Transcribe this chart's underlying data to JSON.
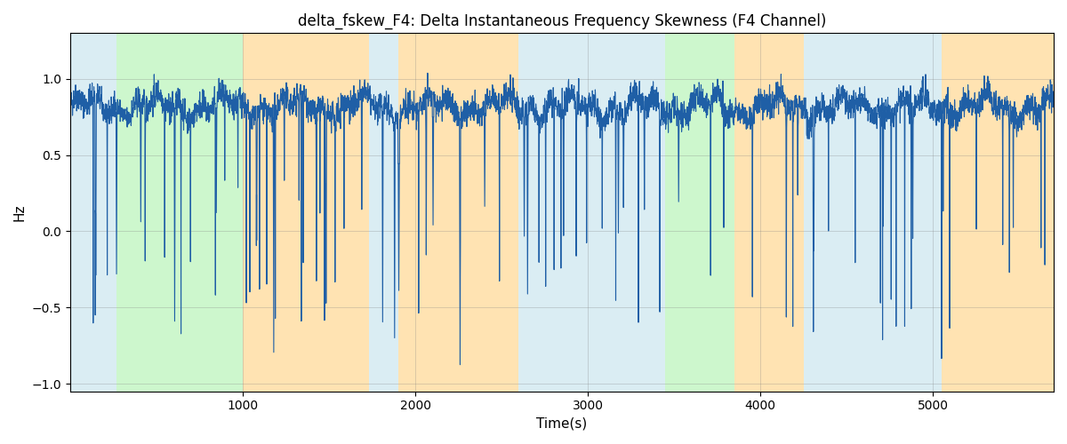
{
  "title": "delta_fskew_F4: Delta Instantaneous Frequency Skewness (F4 Channel)",
  "xlabel": "Time(s)",
  "ylabel": "Hz",
  "xlim": [
    0,
    5700
  ],
  "ylim": [
    -1.05,
    1.3
  ],
  "line_color": "#1f5fa6",
  "line_width": 0.8,
  "background_bands": [
    {
      "xmin": 0,
      "xmax": 270,
      "color": "#add8e6",
      "alpha": 0.45
    },
    {
      "xmin": 270,
      "xmax": 1000,
      "color": "#90ee90",
      "alpha": 0.45
    },
    {
      "xmin": 1000,
      "xmax": 1730,
      "color": "#ffa500",
      "alpha": 0.3
    },
    {
      "xmin": 1730,
      "xmax": 1900,
      "color": "#add8e6",
      "alpha": 0.45
    },
    {
      "xmin": 1900,
      "xmax": 2600,
      "color": "#ffa500",
      "alpha": 0.3
    },
    {
      "xmin": 2600,
      "xmax": 2720,
      "color": "#add8e6",
      "alpha": 0.45
    },
    {
      "xmin": 2720,
      "xmax": 3000,
      "color": "#add8e6",
      "alpha": 0.45
    },
    {
      "xmin": 3000,
      "xmax": 3450,
      "color": "#add8e6",
      "alpha": 0.45
    },
    {
      "xmin": 3450,
      "xmax": 3850,
      "color": "#90ee90",
      "alpha": 0.45
    },
    {
      "xmin": 3850,
      "xmax": 4250,
      "color": "#ffa500",
      "alpha": 0.3
    },
    {
      "xmin": 4250,
      "xmax": 4800,
      "color": "#add8e6",
      "alpha": 0.45
    },
    {
      "xmin": 4800,
      "xmax": 5050,
      "color": "#add8e6",
      "alpha": 0.45
    },
    {
      "xmin": 5050,
      "xmax": 5700,
      "color": "#ffa500",
      "alpha": 0.3
    }
  ],
  "seed": 42,
  "n_points": 5600,
  "figsize": [
    12.0,
    5.0
  ],
  "dpi": 100
}
